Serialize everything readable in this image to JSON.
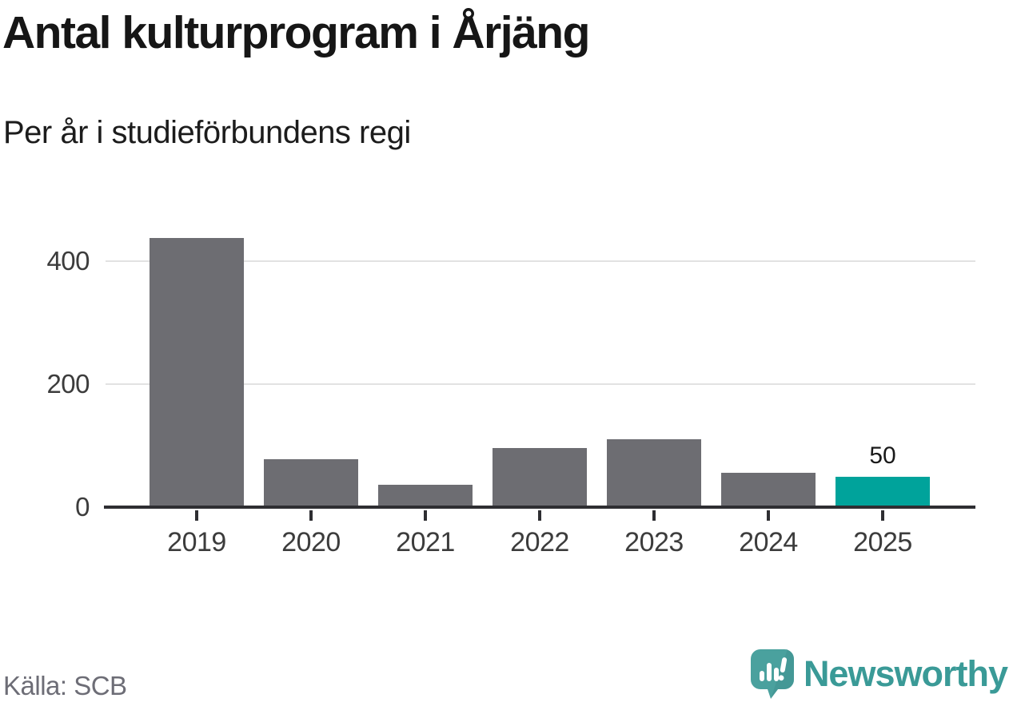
{
  "header": {
    "title": "Antal kulturprogram i Årjäng",
    "subtitle": "Per år i studieförbundens regi"
  },
  "chart_data": {
    "type": "bar",
    "title": "Antal kulturprogram i Årjäng",
    "subtitle": "Per år i studieförbundens regi",
    "categories": [
      "2019",
      "2020",
      "2021",
      "2022",
      "2023",
      "2024",
      "2025"
    ],
    "values": [
      438,
      78,
      36,
      96,
      110,
      56,
      50
    ],
    "bar_labels": [
      null,
      null,
      null,
      null,
      null,
      null,
      "50"
    ],
    "xlabel": "",
    "ylabel": "",
    "ylim": [
      0,
      460
    ],
    "yticks": [
      0,
      200,
      400
    ],
    "ytick_labels": [
      "0",
      "200",
      "400"
    ],
    "grid": "horizontal-only",
    "legend": "none",
    "highlight_index": 6,
    "colors": {
      "bar_default": "#6d6d72",
      "bar_highlight": "#00a39b",
      "gridline": "#e2e2e2",
      "axis": "#2e2e32",
      "tick_label": "#3c3c3c"
    }
  },
  "footer": {
    "source": "Källa: SCB",
    "brand": {
      "name": "Newsworthy",
      "icon": "newsworthy-speech-bubble-chart-icon",
      "logo_color": "#4aa19e",
      "logo_shadow_color": "#3f8e8c",
      "text_color": "#3a9a97"
    }
  }
}
